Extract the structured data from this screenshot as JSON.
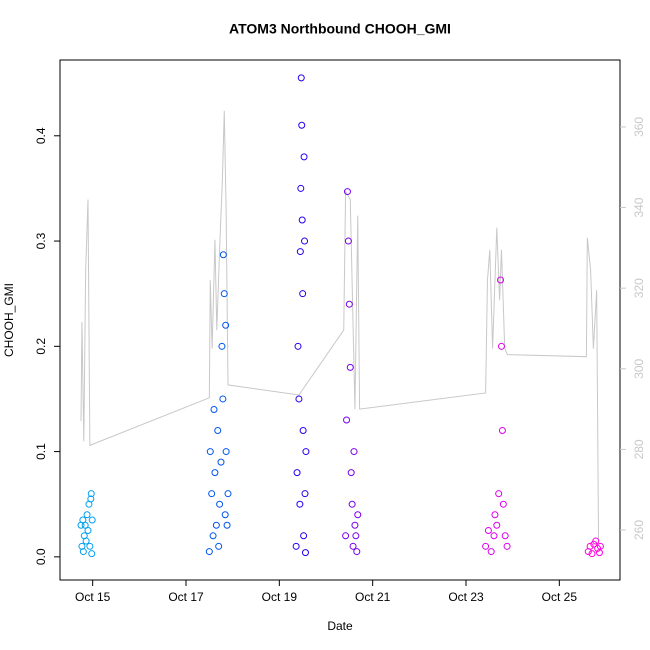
{
  "chart_data": {
    "type": "scatter",
    "title": "ATOM3 Northbound CHOOH_GMI",
    "xlabel": "Date",
    "ylabel": "CHOOH_GMI",
    "xlim": [
      14.3,
      26.3
    ],
    "xticks": [
      {
        "value": 15,
        "label": "Oct 15"
      },
      {
        "value": 17,
        "label": "Oct 17"
      },
      {
        "value": 19,
        "label": "Oct 19"
      },
      {
        "value": 21,
        "label": "Oct 21"
      },
      {
        "value": 23,
        "label": "Oct 23"
      },
      {
        "value": 25,
        "label": "Oct 25"
      }
    ],
    "ylim": [
      -0.022,
      0.472
    ],
    "yticks": [
      {
        "value": 0,
        "label": "0.0"
      },
      0.1,
      0.2,
      0.3,
      0.4
    ],
    "y2lim": [
      247.6,
      376.6
    ],
    "y2ticks": [
      260,
      280,
      300,
      320,
      340,
      360
    ],
    "y2color": "#c8c8c8",
    "series": [
      {
        "type": "line",
        "axis": "y2",
        "color": "#c8c8c8",
        "x": [
          14.75,
          14.77,
          14.81,
          14.85,
          14.9,
          14.94,
          17.5,
          17.52,
          17.56,
          17.62,
          17.66,
          17.72,
          17.78,
          17.82,
          17.86,
          17.9,
          19.42,
          20.38,
          20.42,
          20.52,
          20.62,
          20.68,
          20.72,
          23.42,
          23.46,
          23.51,
          23.57,
          23.66,
          23.72,
          23.76,
          23.83,
          23.89,
          25.58,
          25.6,
          25.67,
          25.73,
          25.8,
          25.84
        ],
        "values": [
          287,
          311.6,
          282,
          324.5,
          342,
          281,
          292.8,
          322,
          305,
          332,
          309.6,
          329.5,
          347,
          364,
          339,
          296,
          293.5,
          309.6,
          344,
          342,
          290,
          338,
          290,
          294,
          322,
          329.5,
          305,
          335,
          317,
          329.5,
          305,
          303.5,
          303,
          332.5,
          324.5,
          305,
          319.5,
          257.5
        ]
      },
      {
        "color": "#00a0f0",
        "x": [
          14.75,
          14.77,
          14.79,
          14.8,
          14.82,
          14.84,
          14.86,
          14.88,
          14.9,
          14.92,
          14.94,
          14.96,
          14.97,
          14.98,
          14.99
        ],
        "values": [
          0.03,
          0.01,
          0.035,
          0.005,
          0.02,
          0.03,
          0.015,
          0.04,
          0.025,
          0.05,
          0.01,
          0.055,
          0.06,
          0.003,
          0.035
        ]
      },
      {
        "color": "#0055ee",
        "x": [
          17.5,
          17.52,
          17.55,
          17.58,
          17.6,
          17.62,
          17.65,
          17.68,
          17.7,
          17.72,
          17.75,
          17.77,
          17.79,
          17.8,
          17.82,
          17.84,
          17.85,
          17.86,
          17.88,
          17.9
        ],
        "values": [
          0.005,
          0.1,
          0.06,
          0.02,
          0.14,
          0.08,
          0.03,
          0.12,
          0.01,
          0.05,
          0.09,
          0.2,
          0.15,
          0.287,
          0.25,
          0.04,
          0.22,
          0.1,
          0.03,
          0.06
        ]
      },
      {
        "color": "#2200ee",
        "x": [
          19.36,
          19.38,
          19.4,
          19.42,
          19.44,
          19.45,
          19.46,
          19.47,
          19.48,
          19.49,
          19.5,
          19.51,
          19.52,
          19.53,
          19.54,
          19.55,
          19.56,
          19.57
        ],
        "values": [
          0.01,
          0.08,
          0.2,
          0.15,
          0.05,
          0.29,
          0.35,
          0.455,
          0.41,
          0.32,
          0.25,
          0.12,
          0.02,
          0.38,
          0.3,
          0.06,
          0.004,
          0.1
        ]
      },
      {
        "color": "#7a00ee",
        "x": [
          20.42,
          20.44,
          20.46,
          20.48,
          20.5,
          20.52,
          20.54,
          20.56,
          20.58,
          20.6,
          20.62,
          20.64,
          20.66,
          20.68
        ],
        "values": [
          0.02,
          0.13,
          0.347,
          0.3,
          0.24,
          0.18,
          0.08,
          0.05,
          0.01,
          0.1,
          0.03,
          0.02,
          0.005,
          0.04
        ]
      },
      {
        "color": "#dd00ee",
        "x": [
          23.42,
          23.48,
          23.54,
          23.6,
          23.62,
          23.66,
          23.7,
          23.74,
          23.76,
          23.78,
          23.8,
          23.84,
          23.88
        ],
        "values": [
          0.01,
          0.025,
          0.005,
          0.02,
          0.04,
          0.03,
          0.06,
          0.263,
          0.2,
          0.12,
          0.05,
          0.02,
          0.01
        ]
      },
      {
        "color": "#ff00dd",
        "x": [
          25.62,
          25.66,
          25.7,
          25.74,
          25.78,
          25.82,
          25.86,
          25.88
        ],
        "values": [
          0.005,
          0.01,
          0.003,
          0.012,
          0.015,
          0.008,
          0.004,
          0.01
        ]
      }
    ]
  }
}
